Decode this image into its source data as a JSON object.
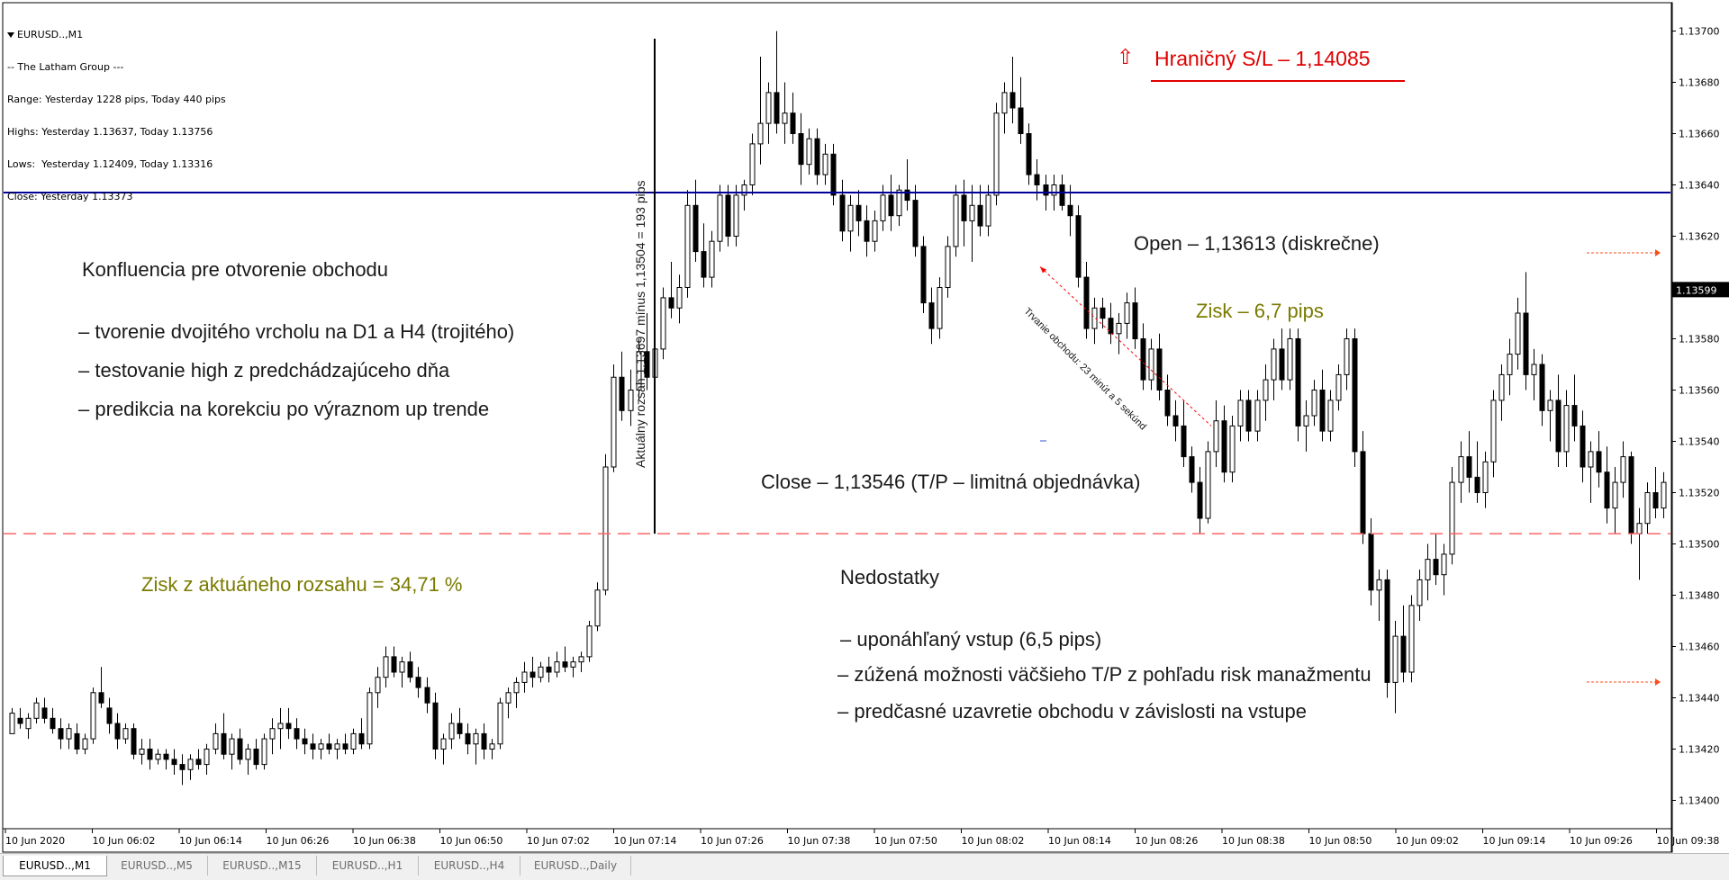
{
  "info_panel": {
    "symbol": "EURUSD..,M1",
    "lines": [
      "-- The Latham Group ---",
      "Range: Yesterday 1228 pips, Today 440 pips",
      "Highs: Yesterday 1.13637, Today 1.13756",
      "Lows:  Yesterday 1.12409, Today 1.13316",
      "Close: Yesterday 1.13373"
    ]
  },
  "price_axis": {
    "labels": [
      "1.13700",
      "1.13680",
      "1.13660",
      "1.13640",
      "1.13620",
      "1.13599",
      "1.13580",
      "1.13560",
      "1.13540",
      "1.13520",
      "1.13500",
      "1.13480",
      "1.13460",
      "1.13440",
      "1.13420",
      "1.13400"
    ],
    "current_price": "1.13599"
  },
  "time_axis": {
    "labels": [
      "10 Jun 2020",
      "10 Jun 06:02",
      "10 Jun 06:14",
      "10 Jun 06:26",
      "10 Jun 06:38",
      "10 Jun 06:50",
      "10 Jun 07:02",
      "10 Jun 07:14",
      "10 Jun 07:26",
      "10 Jun 07:38",
      "10 Jun 07:50",
      "10 Jun 08:02",
      "10 Jun 08:14",
      "10 Jun 08:26",
      "10 Jun 08:38",
      "10 Jun 08:50",
      "10 Jun 09:02",
      "10 Jun 09:14",
      "10 Jun 09:26",
      "10 Jun 09:38"
    ]
  },
  "annotations": {
    "stop_loss_arrow": "⇧",
    "stop_loss": "Hraničný S/L – 1,14085",
    "confluence_title": "Konfluencia pre otvorenie obchodu",
    "confluence_items": [
      "– tvorenie dvojitého vrcholu na D1 a H4 (trojitého)",
      "– testovanie high z predchádzajúceho dňa",
      "– predikcia na korekciu po výraznom up trende"
    ],
    "open": "Open – 1,13613 (diskrečne)",
    "profit_pips": "Zisk – 6,7 pips",
    "close": "Close – 1,13546 (T/P – limitná objednávka)",
    "range_profit": "Zisk z aktuáneho rozsahu = 34,71 %",
    "vertical_range": "Aktuálny rozsah 1,13697 mínus 1,13504 = 193 pips",
    "duration": "Trvanie obchodu: 23 minút a 5 sekúnd",
    "shortcomings_title": "Nedostatky",
    "shortcomings_items": [
      "– uponáhľaný vstup (6,5 pips)",
      "– zúžená možnosti väčšieho T/P z pohľadu risk manažmentu",
      "– predčasné uzavretie obchodu v závislosti na vstupe"
    ]
  },
  "colors": {
    "blue_line": "#000099",
    "red_dashed_line": "#ff6666",
    "stop_loss_text": "#e00000",
    "olive_text": "#7a7a00",
    "trade_arrow": "#ff0000",
    "candle_color": "#000000"
  },
  "tabs": [
    "EURUSD..,M1",
    "EURUSD..,M5",
    "EURUSD..,M15",
    "EURUSD..,H1",
    "EURUSD..,H4",
    "EURUSD..,Daily"
  ],
  "active_tab": "EURUSD..,M1",
  "chart_data": {
    "type": "candlestick",
    "symbol": "EURUSD",
    "timeframe": "M1",
    "y_range": [
      1.1339,
      1.1371
    ],
    "levels": {
      "blue_horizontal": 1.13637,
      "red_dashed_horizontal": 1.13504
    },
    "trade": {
      "open": 1.13613,
      "close": 1.13546,
      "pips": 6.7
    },
    "ohlc": [
      [
        1.13426,
        1.13436,
        1.13426,
        1.13434
      ],
      [
        1.13432,
        1.13436,
        1.13428,
        1.1343
      ],
      [
        1.13428,
        1.13434,
        1.13424,
        1.13432
      ],
      [
        1.13432,
        1.1344,
        1.1343,
        1.13438
      ],
      [
        1.13436,
        1.1344,
        1.1343,
        1.13432
      ],
      [
        1.13432,
        1.13436,
        1.13426,
        1.13428
      ],
      [
        1.13428,
        1.13432,
        1.1342,
        1.13424
      ],
      [
        1.13424,
        1.1343,
        1.1342,
        1.13428
      ],
      [
        1.13426,
        1.1343,
        1.13418,
        1.1342
      ],
      [
        1.1342,
        1.13426,
        1.13418,
        1.13424
      ],
      [
        1.13424,
        1.13444,
        1.13422,
        1.13442
      ],
      [
        1.13442,
        1.13452,
        1.13436,
        1.13438
      ],
      [
        1.13436,
        1.1344,
        1.13426,
        1.1343
      ],
      [
        1.1343,
        1.13434,
        1.1342,
        1.13424
      ],
      [
        1.13424,
        1.1343,
        1.13422,
        1.13428
      ],
      [
        1.13428,
        1.1343,
        1.13416,
        1.13418
      ],
      [
        1.13418,
        1.13424,
        1.13414,
        1.1342
      ],
      [
        1.1342,
        1.13424,
        1.13412,
        1.13416
      ],
      [
        1.13416,
        1.1342,
        1.13414,
        1.13418
      ],
      [
        1.13418,
        1.1342,
        1.13412,
        1.13416
      ],
      [
        1.13416,
        1.1342,
        1.1341,
        1.13414
      ],
      [
        1.13414,
        1.13418,
        1.13406,
        1.13412
      ],
      [
        1.13412,
        1.13418,
        1.13408,
        1.13416
      ],
      [
        1.13416,
        1.1342,
        1.13412,
        1.13414
      ],
      [
        1.13414,
        1.13422,
        1.1341,
        1.1342
      ],
      [
        1.1342,
        1.1343,
        1.13418,
        1.13426
      ],
      [
        1.13426,
        1.13434,
        1.13416,
        1.13418
      ],
      [
        1.13418,
        1.13426,
        1.13412,
        1.13424
      ],
      [
        1.13424,
        1.13428,
        1.13414,
        1.13416
      ],
      [
        1.13416,
        1.13422,
        1.1341,
        1.1342
      ],
      [
        1.1342,
        1.13424,
        1.13412,
        1.13414
      ],
      [
        1.13414,
        1.13426,
        1.13412,
        1.13424
      ],
      [
        1.13424,
        1.13432,
        1.13418,
        1.13428
      ],
      [
        1.13428,
        1.13436,
        1.1342,
        1.1343
      ],
      [
        1.1343,
        1.13436,
        1.13424,
        1.13428
      ],
      [
        1.13428,
        1.13432,
        1.1342,
        1.13424
      ],
      [
        1.13424,
        1.13428,
        1.13418,
        1.13422
      ],
      [
        1.13422,
        1.13426,
        1.13416,
        1.1342
      ],
      [
        1.1342,
        1.13424,
        1.13416,
        1.13422
      ],
      [
        1.13422,
        1.13426,
        1.13418,
        1.1342
      ],
      [
        1.1342,
        1.13424,
        1.13416,
        1.13422
      ],
      [
        1.13422,
        1.13426,
        1.13418,
        1.1342
      ],
      [
        1.1342,
        1.13428,
        1.13418,
        1.13426
      ],
      [
        1.13426,
        1.13432,
        1.1342,
        1.13422
      ],
      [
        1.13422,
        1.13444,
        1.1342,
        1.13442
      ],
      [
        1.13442,
        1.13452,
        1.13436,
        1.13448
      ],
      [
        1.13448,
        1.1346,
        1.13444,
        1.13456
      ],
      [
        1.13456,
        1.1346,
        1.13448,
        1.1345
      ],
      [
        1.1345,
        1.13456,
        1.13444,
        1.13454
      ],
      [
        1.13454,
        1.13458,
        1.13446,
        1.13448
      ],
      [
        1.13448,
        1.13452,
        1.1344,
        1.13444
      ],
      [
        1.13444,
        1.13448,
        1.13434,
        1.13438
      ],
      [
        1.13438,
        1.13442,
        1.13416,
        1.1342
      ],
      [
        1.1342,
        1.13426,
        1.13414,
        1.13424
      ],
      [
        1.13424,
        1.13434,
        1.1342,
        1.1343
      ],
      [
        1.1343,
        1.13436,
        1.13424,
        1.13426
      ],
      [
        1.13426,
        1.1343,
        1.13418,
        1.13422
      ],
      [
        1.13422,
        1.13428,
        1.13414,
        1.13426
      ],
      [
        1.13426,
        1.1343,
        1.13416,
        1.1342
      ],
      [
        1.1342,
        1.13424,
        1.13416,
        1.13422
      ],
      [
        1.13422,
        1.1344,
        1.1342,
        1.13438
      ],
      [
        1.13438,
        1.13444,
        1.13432,
        1.13442
      ],
      [
        1.13442,
        1.13448,
        1.13436,
        1.13446
      ],
      [
        1.13446,
        1.13454,
        1.13442,
        1.1345
      ],
      [
        1.1345,
        1.13456,
        1.13444,
        1.13448
      ],
      [
        1.13448,
        1.13454,
        1.13446,
        1.13452
      ],
      [
        1.13452,
        1.13456,
        1.13446,
        1.1345
      ],
      [
        1.1345,
        1.13458,
        1.13448,
        1.13454
      ],
      [
        1.13454,
        1.1346,
        1.1345,
        1.13452
      ],
      [
        1.13452,
        1.13456,
        1.13448,
        1.13454
      ],
      [
        1.13454,
        1.13458,
        1.1345,
        1.13456
      ],
      [
        1.13456,
        1.1347,
        1.13454,
        1.13468
      ],
      [
        1.13468,
        1.13485,
        1.13466,
        1.13482
      ],
      [
        1.13482,
        1.13535,
        1.1348,
        1.1353
      ],
      [
        1.1353,
        1.1357,
        1.13528,
        1.13565
      ],
      [
        1.13565,
        1.13575,
        1.13548,
        1.13552
      ],
      [
        1.13552,
        1.13568,
        1.13546,
        1.1356
      ],
      [
        1.1356,
        1.1358,
        1.13556,
        1.13575
      ],
      [
        1.13575,
        1.1359,
        1.1356,
        1.13565
      ],
      [
        1.13565,
        1.1358,
        1.1356,
        1.13576
      ],
      [
        1.13576,
        1.136,
        1.13572,
        1.13596
      ],
      [
        1.13596,
        1.1361,
        1.13588,
        1.13592
      ],
      [
        1.13592,
        1.13605,
        1.13586,
        1.136
      ],
      [
        1.136,
        1.13638,
        1.13596,
        1.13632
      ],
      [
        1.13632,
        1.13642,
        1.1361,
        1.13614
      ],
      [
        1.13614,
        1.13625,
        1.136,
        1.13604
      ],
      [
        1.13604,
        1.13622,
        1.136,
        1.13618
      ],
      [
        1.13618,
        1.1364,
        1.13614,
        1.13636
      ],
      [
        1.13636,
        1.1364,
        1.13616,
        1.1362
      ],
      [
        1.1362,
        1.1364,
        1.13616,
        1.13636
      ],
      [
        1.13636,
        1.13642,
        1.1363,
        1.1364
      ],
      [
        1.1364,
        1.1366,
        1.13636,
        1.13656
      ],
      [
        1.13656,
        1.1369,
        1.13648,
        1.13664
      ],
      [
        1.13664,
        1.1368,
        1.13656,
        1.13676
      ],
      [
        1.13676,
        1.137,
        1.1366,
        1.13664
      ],
      [
        1.13664,
        1.1368,
        1.13656,
        1.13668
      ],
      [
        1.13668,
        1.13676,
        1.13656,
        1.1366
      ],
      [
        1.1366,
        1.13668,
        1.1364,
        1.13648
      ],
      [
        1.13648,
        1.13662,
        1.13644,
        1.13658
      ],
      [
        1.13658,
        1.13662,
        1.1364,
        1.13644
      ],
      [
        1.13644,
        1.13656,
        1.1364,
        1.13652
      ],
      [
        1.13652,
        1.13656,
        1.13632,
        1.13636
      ],
      [
        1.13636,
        1.13642,
        1.13618,
        1.13622
      ],
      [
        1.13622,
        1.13636,
        1.13614,
        1.13632
      ],
      [
        1.13632,
        1.13638,
        1.1362,
        1.13626
      ],
      [
        1.13626,
        1.13632,
        1.13612,
        1.13618
      ],
      [
        1.13618,
        1.1363,
        1.13614,
        1.13626
      ],
      [
        1.13626,
        1.1364,
        1.13622,
        1.13636
      ],
      [
        1.13636,
        1.13644,
        1.13622,
        1.13628
      ],
      [
        1.13628,
        1.1364,
        1.13624,
        1.13638
      ],
      [
        1.13638,
        1.1365,
        1.1363,
        1.13634
      ],
      [
        1.13634,
        1.1364,
        1.13612,
        1.13616
      ],
      [
        1.13616,
        1.1362,
        1.1359,
        1.13594
      ],
      [
        1.13594,
        1.136,
        1.13578,
        1.13584
      ],
      [
        1.13584,
        1.13604,
        1.1358,
        1.136
      ],
      [
        1.136,
        1.1362,
        1.13596,
        1.13616
      ],
      [
        1.13616,
        1.1364,
        1.13612,
        1.13636
      ],
      [
        1.13636,
        1.13642,
        1.13616,
        1.13626
      ],
      [
        1.13626,
        1.1364,
        1.1361,
        1.13632
      ],
      [
        1.13632,
        1.1364,
        1.1362,
        1.13624
      ],
      [
        1.13624,
        1.1364,
        1.1362,
        1.13636
      ],
      [
        1.13636,
        1.13672,
        1.13632,
        1.13668
      ],
      [
        1.13668,
        1.1368,
        1.1366,
        1.13676
      ],
      [
        1.13676,
        1.1369,
        1.13664,
        1.1367
      ],
      [
        1.1367,
        1.13682,
        1.13656,
        1.1366
      ],
      [
        1.1366,
        1.13664,
        1.1364,
        1.13644
      ],
      [
        1.13644,
        1.1365,
        1.13634,
        1.1364
      ],
      [
        1.1364,
        1.13644,
        1.1363,
        1.13636
      ],
      [
        1.13636,
        1.13644,
        1.1363,
        1.1364
      ],
      [
        1.1364,
        1.13644,
        1.1363,
        1.13632
      ],
      [
        1.13632,
        1.1364,
        1.1362,
        1.13628
      ],
      [
        1.13628,
        1.13632,
        1.136,
        1.13604
      ],
      [
        1.13604,
        1.1361,
        1.1358,
        1.13584
      ],
      [
        1.13584,
        1.13596,
        1.13578,
        1.13592
      ],
      [
        1.13592,
        1.13596,
        1.13584,
        1.13588
      ],
      [
        1.13588,
        1.13594,
        1.13578,
        1.13582
      ],
      [
        1.13582,
        1.1359,
        1.13574,
        1.13586
      ],
      [
        1.13586,
        1.13598,
        1.1358,
        1.13594
      ],
      [
        1.13594,
        1.136,
        1.13576,
        1.1358
      ],
      [
        1.1358,
        1.13586,
        1.1356,
        1.13564
      ],
      [
        1.13564,
        1.1358,
        1.1356,
        1.13576
      ],
      [
        1.13576,
        1.13582,
        1.13556,
        1.1356
      ],
      [
        1.1356,
        1.13566,
        1.13546,
        1.1355
      ],
      [
        1.1355,
        1.13556,
        1.1354,
        1.13546
      ],
      [
        1.13546,
        1.13556,
        1.1353,
        1.13534
      ],
      [
        1.13534,
        1.13538,
        1.1352,
        1.13524
      ],
      [
        1.13524,
        1.1353,
        1.13504,
        1.1351
      ],
      [
        1.1351,
        1.1354,
        1.13508,
        1.13536
      ],
      [
        1.13536,
        1.13556,
        1.1353,
        1.13548
      ],
      [
        1.13548,
        1.13554,
        1.13524,
        1.13528
      ],
      [
        1.13528,
        1.1355,
        1.13524,
        1.13546
      ],
      [
        1.13546,
        1.1356,
        1.1354,
        1.13556
      ],
      [
        1.13556,
        1.1356,
        1.1354,
        1.13544
      ],
      [
        1.13544,
        1.1356,
        1.1354,
        1.13556
      ],
      [
        1.13556,
        1.1357,
        1.13548,
        1.13564
      ],
      [
        1.13564,
        1.1358,
        1.13556,
        1.13576
      ],
      [
        1.13576,
        1.13584,
        1.1356,
        1.13564
      ],
      [
        1.13564,
        1.13584,
        1.1356,
        1.1358
      ],
      [
        1.1358,
        1.13584,
        1.1354,
        1.13546
      ],
      [
        1.13546,
        1.13556,
        1.13536,
        1.1355
      ],
      [
        1.1355,
        1.13564,
        1.13546,
        1.1356
      ],
      [
        1.1356,
        1.13568,
        1.1354,
        1.13544
      ],
      [
        1.13544,
        1.1356,
        1.1354,
        1.13556
      ],
      [
        1.13556,
        1.1357,
        1.13552,
        1.13566
      ],
      [
        1.13566,
        1.13584,
        1.1356,
        1.1358
      ],
      [
        1.1358,
        1.13584,
        1.1353,
        1.13536
      ],
      [
        1.13536,
        1.13544,
        1.135,
        1.13504
      ],
      [
        1.13504,
        1.1351,
        1.13476,
        1.13482
      ],
      [
        1.13482,
        1.1349,
        1.1347,
        1.13486
      ],
      [
        1.13486,
        1.1349,
        1.1344,
        1.13446
      ],
      [
        1.13446,
        1.1347,
        1.13434,
        1.13464
      ],
      [
        1.13464,
        1.13476,
        1.13446,
        1.1345
      ],
      [
        1.1345,
        1.1348,
        1.13446,
        1.13476
      ],
      [
        1.13476,
        1.1349,
        1.1347,
        1.13486
      ],
      [
        1.13486,
        1.135,
        1.13478,
        1.13494
      ],
      [
        1.13494,
        1.13504,
        1.13484,
        1.13488
      ],
      [
        1.13488,
        1.135,
        1.1348,
        1.13496
      ],
      [
        1.13496,
        1.1353,
        1.13492,
        1.13524
      ],
      [
        1.13524,
        1.1354,
        1.13516,
        1.13534
      ],
      [
        1.13534,
        1.13544,
        1.1352,
        1.13526
      ],
      [
        1.13526,
        1.1354,
        1.13516,
        1.1352
      ],
      [
        1.1352,
        1.13536,
        1.13514,
        1.13532
      ],
      [
        1.13532,
        1.1356,
        1.13526,
        1.13556
      ],
      [
        1.13556,
        1.1357,
        1.13548,
        1.13566
      ],
      [
        1.13566,
        1.1358,
        1.13558,
        1.13574
      ],
      [
        1.13574,
        1.13596,
        1.13568,
        1.1359
      ],
      [
        1.1359,
        1.13606,
        1.1356,
        1.13566
      ],
      [
        1.13566,
        1.13576,
        1.13556,
        1.1357
      ],
      [
        1.1357,
        1.13574,
        1.13546,
        1.13552
      ],
      [
        1.13552,
        1.1356,
        1.1354,
        1.13556
      ],
      [
        1.13556,
        1.13566,
        1.1353,
        1.13536
      ],
      [
        1.13536,
        1.1356,
        1.1353,
        1.13554
      ],
      [
        1.13554,
        1.13566,
        1.1354,
        1.13546
      ],
      [
        1.13546,
        1.13552,
        1.13524,
        1.1353
      ],
      [
        1.1353,
        1.1354,
        1.13516,
        1.13536
      ],
      [
        1.13536,
        1.13544,
        1.13522,
        1.13528
      ],
      [
        1.13528,
        1.13538,
        1.13508,
        1.13514
      ],
      [
        1.13514,
        1.1353,
        1.13504,
        1.13524
      ],
      [
        1.13524,
        1.1354,
        1.13518,
        1.13534
      ],
      [
        1.13534,
        1.13536,
        1.135,
        1.13504
      ],
      [
        1.13504,
        1.13514,
        1.13486,
        1.13508
      ],
      [
        1.13508,
        1.13524,
        1.13504,
        1.1352
      ],
      [
        1.1352,
        1.1353,
        1.1351,
        1.13514
      ],
      [
        1.13514,
        1.13528,
        1.1351,
        1.13524
      ]
    ]
  }
}
